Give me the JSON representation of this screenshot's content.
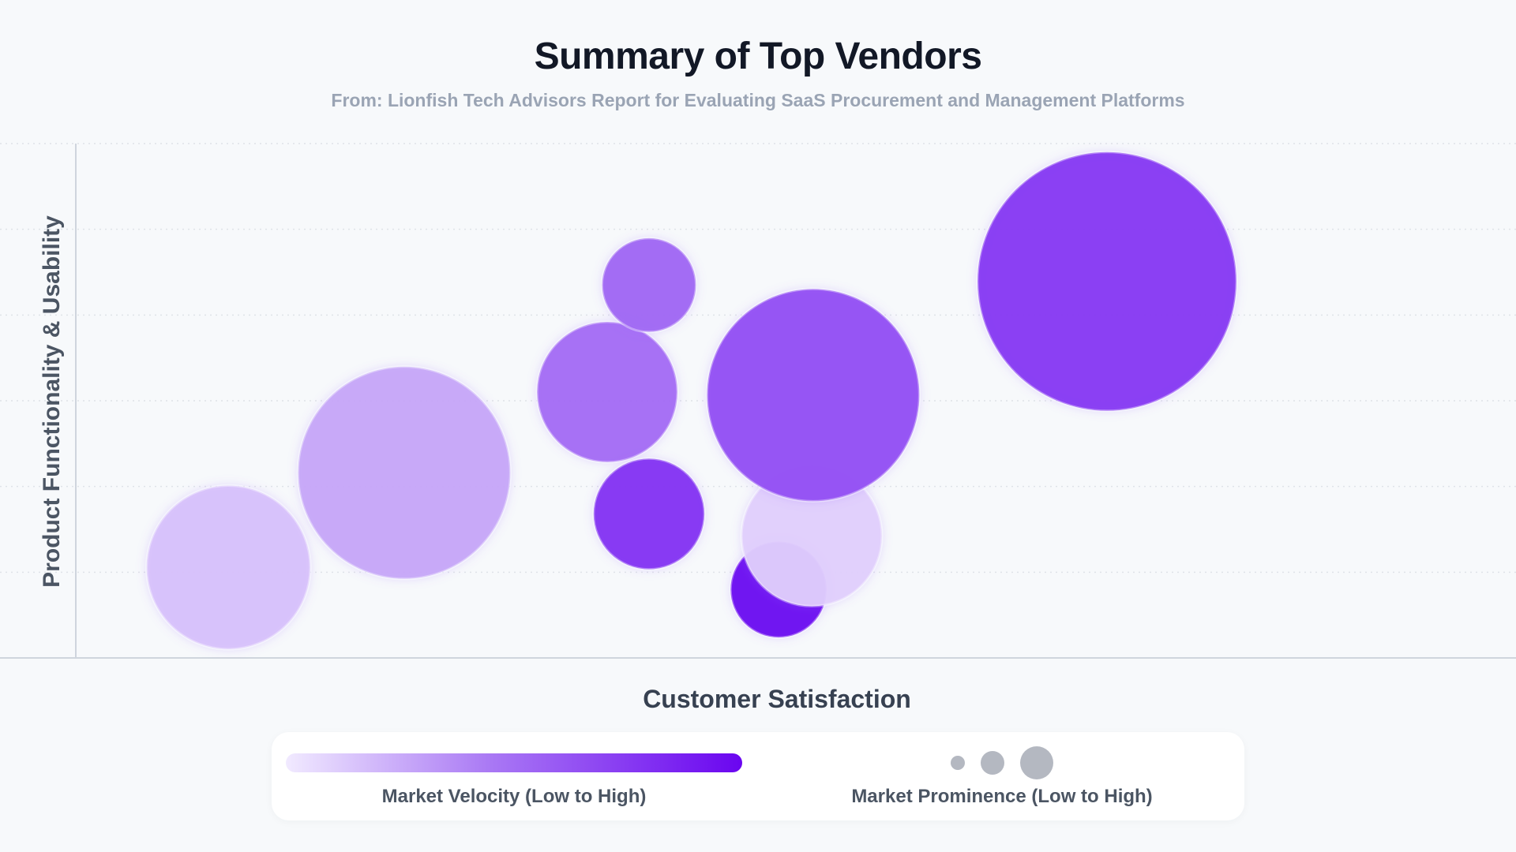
{
  "colors": {
    "background": "#f7f9fb",
    "low": "#f1eaff",
    "mid": "#a978f4",
    "high": "#6a05f0",
    "grid": "#dfe3e8",
    "size_dot": "#b4b8c1"
  },
  "chart_data": {
    "type": "scatter",
    "title": "Summary of Top Vendors",
    "subtitle": "From: Lionfish Tech Advisors Report for Evaluating SaaS Procurement and Management Platforms",
    "xlabel": "Customer Satisfaction",
    "ylabel": "Product Functionality & Usability",
    "xlim": [
      0,
      100
    ],
    "ylim": [
      0,
      100
    ],
    "grid": "horizontal-dotted",
    "legend": {
      "color_label": "Market Velocity (Low to High)",
      "size_label": "Market Prominence (Low to High)",
      "placement": "bottom-center"
    },
    "points": [
      {
        "x": 10.6,
        "y": 17.6,
        "size": 0.55,
        "velocity": 0.18
      },
      {
        "x": 22.8,
        "y": 36.0,
        "size": 0.78,
        "velocity": 0.3
      },
      {
        "x": 36.9,
        "y": 51.7,
        "size": 0.44,
        "velocity": 0.55
      },
      {
        "x": 39.8,
        "y": 72.5,
        "size": 0.22,
        "velocity": 0.58
      },
      {
        "x": 39.8,
        "y": 28.0,
        "size": 0.3,
        "velocity": 0.8
      },
      {
        "x": 48.8,
        "y": 13.3,
        "size": 0.23,
        "velocity": 1.0
      },
      {
        "x": 51.1,
        "y": 23.7,
        "size": 0.44,
        "velocity": 0.12
      },
      {
        "x": 51.2,
        "y": 51.1,
        "size": 0.78,
        "velocity": 0.68
      },
      {
        "x": 71.6,
        "y": 73.2,
        "size": 1.0,
        "velocity": 0.78
      }
    ]
  }
}
